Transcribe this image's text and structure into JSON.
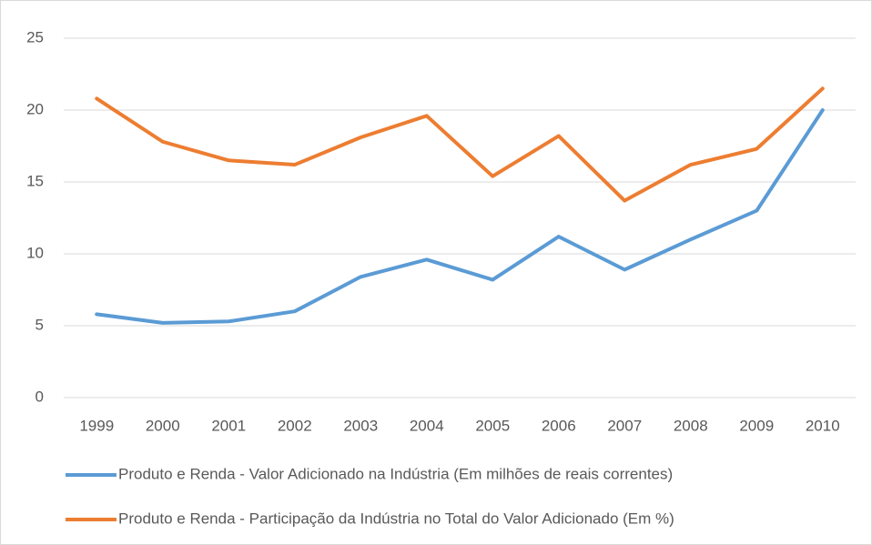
{
  "chart_data": {
    "type": "line",
    "categories": [
      "1999",
      "2000",
      "2001",
      "2002",
      "2003",
      "2004",
      "2005",
      "2006",
      "2007",
      "2008",
      "2009",
      "2010"
    ],
    "series": [
      {
        "name": "Produto e Renda - Valor Adicionado na Indústria (Em milhões de reais correntes)",
        "color": "#5b9bd5",
        "values": [
          5.8,
          5.2,
          5.3,
          6.0,
          8.4,
          9.6,
          8.2,
          11.2,
          8.9,
          11.0,
          13.0,
          20.0
        ]
      },
      {
        "name": "Produto e Renda - Participação da Indústria no Total do Valor Adicionado (Em %)",
        "color": "#ed7d31",
        "values": [
          20.8,
          17.8,
          16.5,
          16.2,
          18.1,
          19.6,
          15.4,
          18.2,
          13.7,
          16.2,
          17.3,
          21.5
        ]
      }
    ],
    "ylim": [
      0,
      25
    ],
    "yticks": [
      0,
      5,
      10,
      15,
      20,
      25
    ],
    "grid": true,
    "legend": "bottom"
  }
}
